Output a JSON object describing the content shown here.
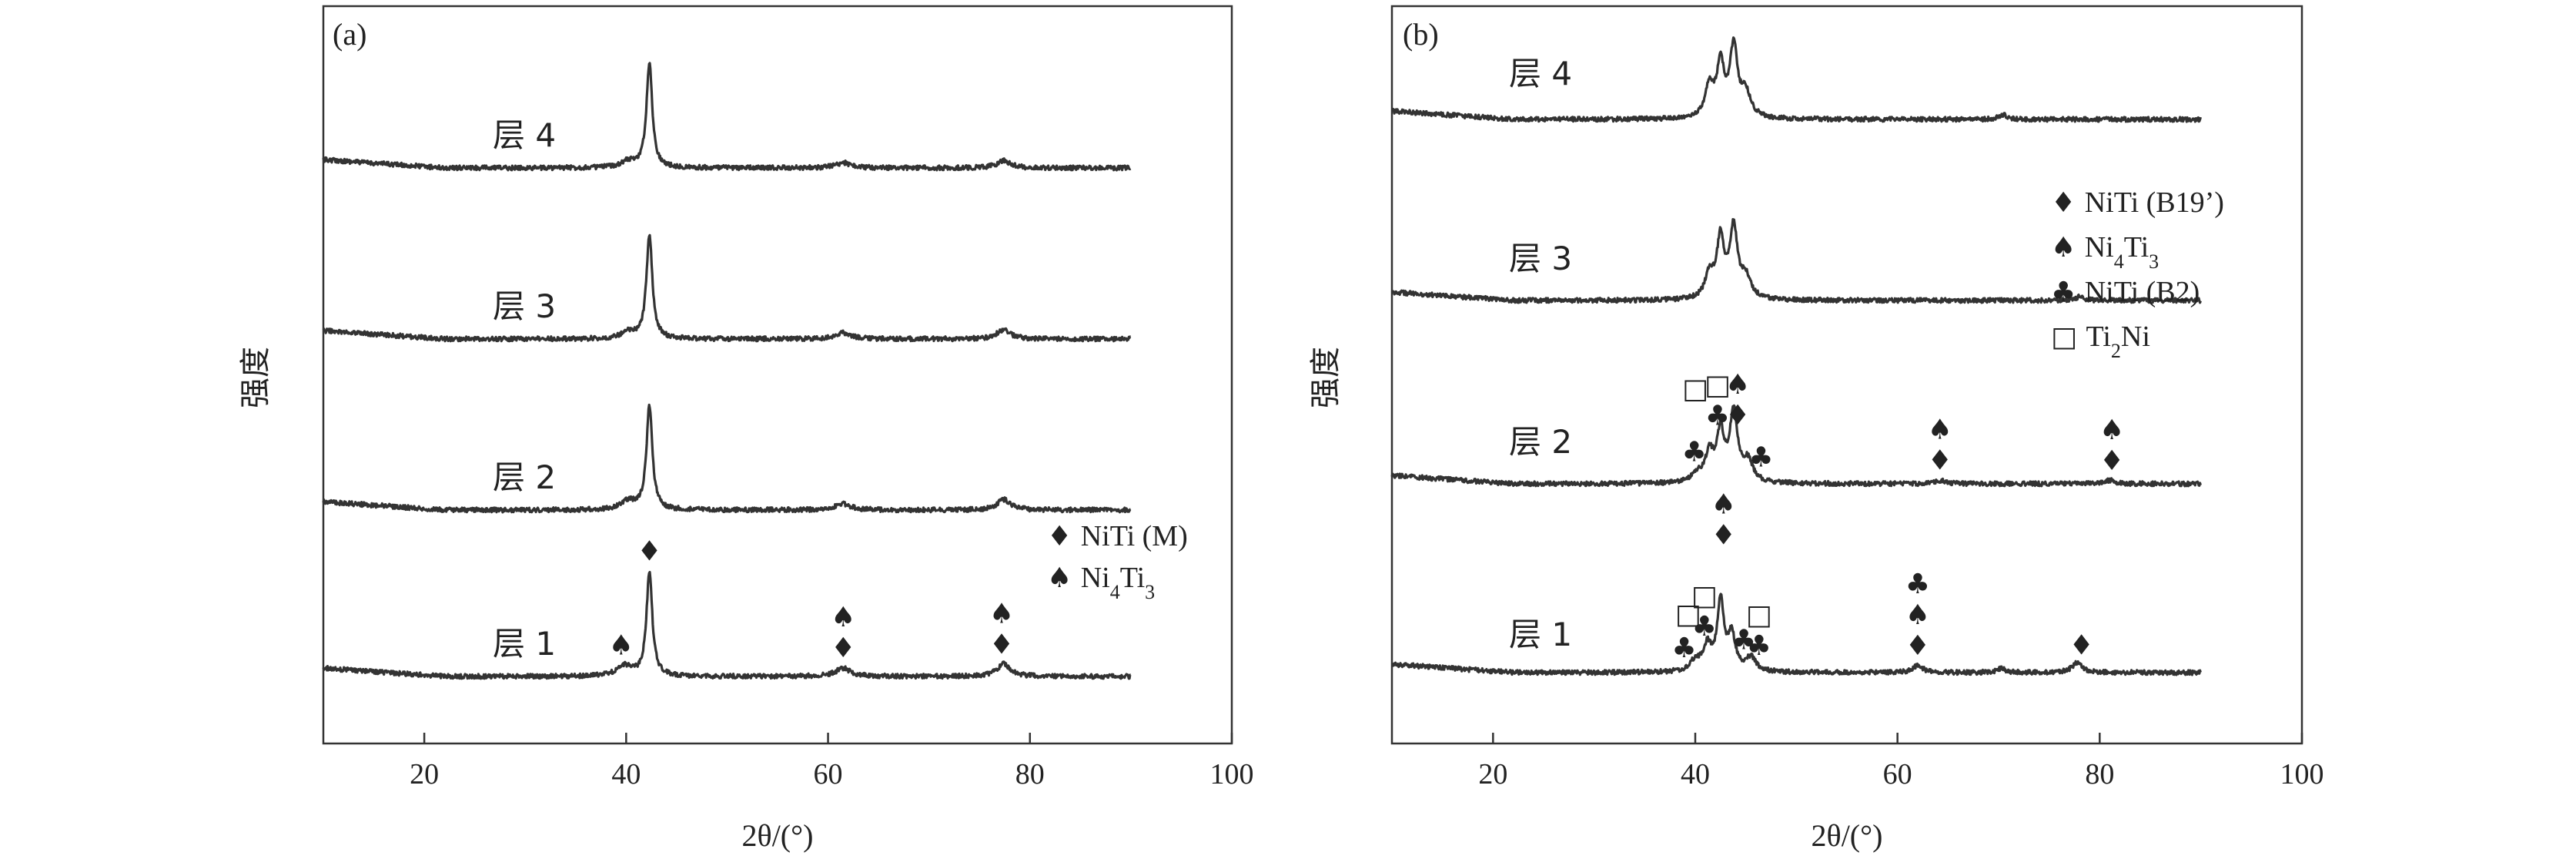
{
  "chart_data": [
    {
      "type": "line",
      "panel_label": "(a)",
      "xlabel": "2θ/(°)",
      "ylabel": "强度",
      "xlim": [
        10,
        100
      ],
      "xticks": [
        20,
        40,
        60,
        80,
        100
      ],
      "yticks_shown": false,
      "x_range_of_data": [
        10,
        90
      ],
      "series": [
        {
          "name": "层 4",
          "label": "层 4",
          "peaks": [
            {
              "x": 40.2,
              "height": 0.06,
              "width": 0.9
            },
            {
              "x": 42.3,
              "height": 1.0,
              "width": 0.35
            },
            {
              "x": 61.5,
              "height": 0.05,
              "width": 0.9
            },
            {
              "x": 77.4,
              "height": 0.07,
              "width": 0.8
            }
          ]
        },
        {
          "name": "层 3",
          "label": "层 3",
          "peaks": [
            {
              "x": 40.2,
              "height": 0.06,
              "width": 0.9
            },
            {
              "x": 42.3,
              "height": 1.0,
              "width": 0.35
            },
            {
              "x": 61.5,
              "height": 0.06,
              "width": 0.9
            },
            {
              "x": 77.4,
              "height": 0.09,
              "width": 0.8
            }
          ]
        },
        {
          "name": "层 2",
          "label": "层 2",
          "peaks": [
            {
              "x": 40.2,
              "height": 0.08,
              "width": 0.9
            },
            {
              "x": 42.3,
              "height": 1.0,
              "width": 0.35
            },
            {
              "x": 61.5,
              "height": 0.06,
              "width": 0.9
            },
            {
              "x": 77.4,
              "height": 0.1,
              "width": 0.8
            }
          ]
        },
        {
          "name": "层 1",
          "label": "层 1",
          "peaks": [
            {
              "x": 39.8,
              "height": 0.1,
              "width": 0.9
            },
            {
              "x": 42.3,
              "height": 1.0,
              "width": 0.35
            },
            {
              "x": 61.5,
              "height": 0.08,
              "width": 0.9
            },
            {
              "x": 77.4,
              "height": 0.12,
              "width": 0.8
            }
          ]
        }
      ],
      "annotations": [
        {
          "series": "层 1",
          "x": 39.5,
          "symbols": [
            "♠"
          ]
        },
        {
          "series": "层 1",
          "x": 42.3,
          "symbols": [
            "♦"
          ]
        },
        {
          "series": "层 1",
          "x": 61.5,
          "symbols": [
            "♦",
            "♠"
          ]
        },
        {
          "series": "层 1",
          "x": 77.2,
          "symbols": [
            "♦",
            "♠"
          ]
        }
      ],
      "legend": {
        "position": "right, level of 层 1",
        "entries": [
          {
            "symbol": "♦",
            "label": "NiTi (M)"
          },
          {
            "symbol": "♠",
            "label": "Ni",
            "sub": "4",
            "label2": "Ti",
            "sub2": "3"
          }
        ]
      }
    },
    {
      "type": "line",
      "panel_label": "(b)",
      "xlabel": "2θ/(°)",
      "ylabel": "强度",
      "xlim": [
        10,
        100
      ],
      "xticks": [
        20,
        40,
        60,
        80,
        100
      ],
      "yticks_shown": false,
      "x_range_of_data": [
        10,
        90
      ],
      "series": [
        {
          "name": "层 4",
          "label": "层 4",
          "peaks": [
            {
              "x": 41.4,
              "height": 0.45,
              "width": 0.5
            },
            {
              "x": 42.5,
              "height": 0.75,
              "width": 0.45
            },
            {
              "x": 43.8,
              "height": 1.0,
              "width": 0.45
            },
            {
              "x": 45.0,
              "height": 0.35,
              "width": 0.6
            },
            {
              "x": 70.5,
              "height": 0.07,
              "width": 0.5
            }
          ]
        },
        {
          "name": "层 3",
          "label": "层 3",
          "peaks": [
            {
              "x": 41.4,
              "height": 0.35,
              "width": 0.5
            },
            {
              "x": 42.5,
              "height": 0.85,
              "width": 0.45
            },
            {
              "x": 43.8,
              "height": 1.0,
              "width": 0.45
            },
            {
              "x": 45.0,
              "height": 0.3,
              "width": 0.6
            },
            {
              "x": 78.0,
              "height": 0.05,
              "width": 0.6
            }
          ]
        },
        {
          "name": "层 2",
          "label": "层 2",
          "peaks": [
            {
              "x": 40.2,
              "height": 0.12,
              "width": 0.6
            },
            {
              "x": 41.4,
              "height": 0.4,
              "width": 0.5
            },
            {
              "x": 42.5,
              "height": 0.7,
              "width": 0.45
            },
            {
              "x": 43.8,
              "height": 1.0,
              "width": 0.45
            },
            {
              "x": 45.2,
              "height": 0.3,
              "width": 0.6
            },
            {
              "x": 64.3,
              "height": 0.05,
              "width": 0.6
            },
            {
              "x": 81.0,
              "height": 0.05,
              "width": 0.6
            }
          ]
        },
        {
          "name": "层 1",
          "label": "层 1",
          "peaks": [
            {
              "x": 40.0,
              "height": 0.15,
              "width": 0.6
            },
            {
              "x": 41.2,
              "height": 0.35,
              "width": 0.5
            },
            {
              "x": 42.5,
              "height": 1.0,
              "width": 0.4
            },
            {
              "x": 43.6,
              "height": 0.5,
              "width": 0.45
            },
            {
              "x": 45.5,
              "height": 0.2,
              "width": 0.6
            },
            {
              "x": 62.0,
              "height": 0.1,
              "width": 0.6
            },
            {
              "x": 70.3,
              "height": 0.06,
              "width": 0.5
            },
            {
              "x": 77.8,
              "height": 0.15,
              "width": 0.6
            }
          ]
        }
      ],
      "annotations": [
        {
          "series": "层 2",
          "x": 39.9,
          "symbols": [
            "♣"
          ]
        },
        {
          "series": "层 2",
          "x": 40.0,
          "symbols": [
            "□"
          ],
          "row": 3
        },
        {
          "series": "层 2",
          "x": 42.2,
          "symbols": [
            "♣",
            "□"
          ]
        },
        {
          "series": "层 2",
          "x": 44.2,
          "symbols": [
            "♦",
            "♠"
          ]
        },
        {
          "series": "层 2",
          "x": 46.5,
          "symbols": [
            "♣"
          ]
        },
        {
          "series": "层 2",
          "x": 64.2,
          "symbols": [
            "♦",
            "♠"
          ]
        },
        {
          "series": "层 2",
          "x": 81.2,
          "symbols": [
            "♦",
            "♠"
          ]
        },
        {
          "series": "层 1",
          "x": 38.9,
          "symbols": [
            "♣"
          ]
        },
        {
          "series": "层 1",
          "x": 39.3,
          "symbols": [
            "□"
          ],
          "row": 2
        },
        {
          "series": "层 1",
          "x": 40.9,
          "symbols": [
            "♣",
            "□"
          ]
        },
        {
          "series": "层 1",
          "x": 42.8,
          "symbols": [
            "♦",
            "♠"
          ],
          "row": 3
        },
        {
          "series": "层 1",
          "x": 44.8,
          "symbols": [
            "♣"
          ]
        },
        {
          "series": "层 1",
          "x": 46.3,
          "symbols": [
            "♣",
            "□"
          ]
        },
        {
          "series": "层 1",
          "x": 62.0,
          "symbols": [
            "♦",
            "♠",
            "♣"
          ]
        },
        {
          "series": "层 1",
          "x": 78.2,
          "symbols": [
            "♦"
          ]
        }
      ],
      "legend": {
        "position": "right, between 层 3 and 层 2",
        "entries": [
          {
            "symbol": "♦",
            "label": "NiTi (B19’)"
          },
          {
            "symbol": "♠",
            "label": "Ni",
            "sub": "4",
            "label2": "Ti",
            "sub2": "3"
          },
          {
            "symbol": "♣",
            "label": "NiTi (B2)"
          },
          {
            "symbol": "□",
            "label": "Ti",
            "sub": "2",
            "label2": "Ni",
            "sub2": ""
          }
        ]
      }
    }
  ]
}
